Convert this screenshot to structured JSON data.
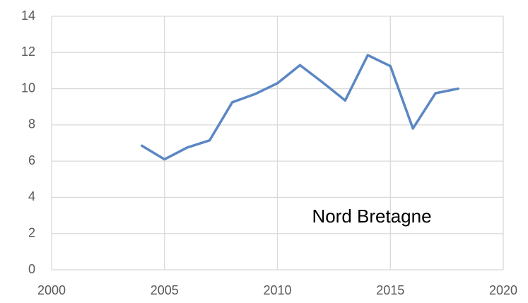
{
  "chart_data": {
    "type": "line",
    "annotation": "Nord Bretagne",
    "x": [
      2004,
      2005,
      2006,
      2007,
      2008,
      2009,
      2010,
      2011,
      2012,
      2013,
      2014,
      2015,
      2016,
      2017,
      2018
    ],
    "series": [
      {
        "name": null,
        "color": "#5b87c4",
        "values": [
          6.85,
          6.1,
          6.75,
          7.15,
          9.25,
          9.7,
          10.3,
          11.3,
          10.35,
          9.35,
          11.85,
          11.25,
          7.8,
          9.75,
          10
        ]
      }
    ],
    "xlim": [
      2000,
      2020
    ],
    "xticks": [
      2000,
      2005,
      2010,
      2015,
      2020
    ],
    "ylim": [
      0,
      14
    ],
    "yticks": [
      0,
      2,
      4,
      6,
      8,
      10,
      12,
      14
    ],
    "grid": true
  }
}
